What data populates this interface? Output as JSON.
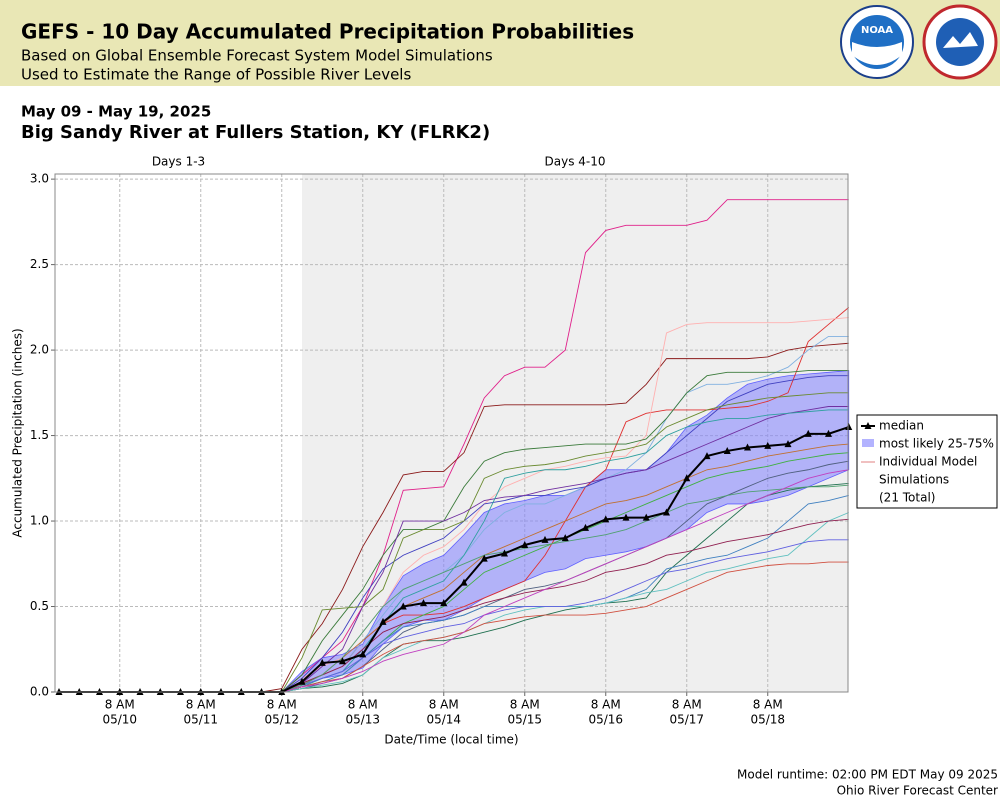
{
  "header": {
    "title": "GEFS - 10 Day Accumulated Precipitation Probabilities",
    "subtitles": [
      "Based on Global Ensemble Forecast System Model Simulations",
      "Used to Estimate the Range of Possible River Levels"
    ],
    "logo": "NOAA"
  },
  "chart_data": {
    "type": "line",
    "title": "May 09 - May 19, 2025",
    "subtitle": "Big Sandy River at Fullers Station, KY (FLRK2)",
    "x_label": "Date/Time (local time)",
    "y_label": "Accumulated Precipitation (inches)",
    "periods": [
      {
        "label": "Days 1-3",
        "start": 0,
        "end": 12
      },
      {
        "label": "Days 4-10",
        "start": 12,
        "end": 39
      }
    ],
    "categories": [
      null,
      null,
      null,
      [
        "8 AM",
        "05/10"
      ],
      null,
      null,
      null,
      [
        "8 AM",
        "05/11"
      ],
      null,
      null,
      null,
      [
        "8 AM",
        "05/12"
      ],
      null,
      null,
      null,
      [
        "8 AM",
        "05/13"
      ],
      null,
      null,
      null,
      [
        "8 AM",
        "05/14"
      ],
      null,
      null,
      null,
      [
        "8 AM",
        "05/15"
      ],
      null,
      null,
      null,
      [
        "8 AM",
        "05/16"
      ],
      null,
      null,
      null,
      [
        "8 AM",
        "05/17"
      ],
      null,
      null,
      null,
      [
        "8 AM",
        "05/18"
      ],
      null,
      null,
      null,
      null
    ],
    "ylim": [
      0,
      3.03
    ],
    "yticks": [
      {
        "value": 0,
        "label": "0.0"
      },
      0.5,
      {
        "value": 1,
        "label": "1.0"
      },
      1.5,
      {
        "value": 2,
        "label": "2.0"
      },
      2.5,
      {
        "value": 3,
        "label": "3.0"
      }
    ],
    "grid": true,
    "median": {
      "name": "median",
      "color": "#000000",
      "values": [
        0,
        0,
        0,
        0,
        0,
        0,
        0,
        0,
        0,
        0,
        0,
        0,
        0.06,
        0.17,
        0.18,
        0.22,
        0.41,
        0.5,
        0.52,
        0.52,
        0.64,
        0.78,
        0.81,
        0.86,
        0.89,
        0.9,
        0.96,
        1.01,
        1.02,
        1.02,
        1.05,
        1.25,
        1.38,
        1.41,
        1.43,
        1.44,
        1.45,
        1.51,
        1.51,
        1.55
      ]
    },
    "band": {
      "name": "most likely 25-75%",
      "color": "#8080ff",
      "low": [
        0,
        0,
        0,
        0,
        0,
        0,
        0,
        0,
        0,
        0,
        0,
        0,
        0.03,
        0.08,
        0.1,
        0.14,
        0.28,
        0.38,
        0.42,
        0.42,
        0.48,
        0.55,
        0.6,
        0.65,
        0.7,
        0.72,
        0.78,
        0.8,
        0.82,
        0.85,
        0.9,
        0.95,
        1.05,
        1.1,
        1.1,
        1.12,
        1.15,
        1.2,
        1.25,
        1.3
      ],
      "high": [
        0,
        0,
        0,
        0,
        0,
        0,
        0,
        0,
        0,
        0,
        0,
        0,
        0.12,
        0.2,
        0.22,
        0.28,
        0.5,
        0.68,
        0.75,
        0.8,
        0.92,
        1.05,
        1.1,
        1.12,
        1.15,
        1.15,
        1.2,
        1.3,
        1.3,
        1.3,
        1.4,
        1.55,
        1.62,
        1.72,
        1.8,
        1.83,
        1.85,
        1.86,
        1.87,
        1.88
      ]
    },
    "simulations": {
      "legend": [
        "Individual Model",
        "Simulations",
        "(21 Total)"
      ],
      "legend_color": "#e08080",
      "series": [
        {
          "color": "#e0208a",
          "values": [
            0,
            0,
            0,
            0,
            0,
            0,
            0,
            0,
            0,
            0,
            0,
            0,
            0.1,
            0.2,
            0.3,
            0.5,
            0.8,
            1.18,
            1.19,
            1.2,
            1.45,
            1.72,
            1.85,
            1.9,
            1.9,
            2.0,
            2.57,
            2.7,
            2.73,
            2.73,
            2.73,
            2.73,
            2.76,
            2.88,
            2.88,
            2.88,
            2.88,
            2.88,
            2.88,
            2.88
          ]
        },
        {
          "color": "#8b1a1a",
          "values": [
            0,
            0,
            0,
            0,
            0,
            0,
            0,
            0,
            0,
            0,
            0,
            0.02,
            0.25,
            0.4,
            0.6,
            0.85,
            1.05,
            1.27,
            1.29,
            1.29,
            1.4,
            1.67,
            1.68,
            1.68,
            1.68,
            1.68,
            1.68,
            1.68,
            1.69,
            1.8,
            1.95,
            1.95,
            1.95,
            1.95,
            1.95,
            1.96,
            2.0,
            2.02,
            2.03,
            2.04
          ]
        },
        {
          "color": "#e03030",
          "values": [
            0,
            0,
            0,
            0,
            0,
            0,
            0,
            0,
            0,
            0,
            0,
            0,
            0.05,
            0.1,
            0.15,
            0.3,
            0.4,
            0.45,
            0.45,
            0.46,
            0.5,
            0.55,
            0.6,
            0.65,
            0.8,
            1.0,
            1.2,
            1.3,
            1.58,
            1.63,
            1.65,
            1.65,
            1.65,
            1.66,
            1.67,
            1.7,
            1.75,
            2.05,
            2.15,
            2.25
          ]
        },
        {
          "color": "#ffb0b0",
          "values": [
            0,
            0,
            0,
            0,
            0,
            0,
            0,
            0,
            0,
            0,
            0,
            0,
            0.08,
            0.15,
            0.2,
            0.35,
            0.5,
            0.7,
            0.8,
            0.85,
            0.95,
            1.1,
            1.2,
            1.25,
            1.3,
            1.32,
            1.35,
            1.37,
            1.38,
            1.5,
            2.1,
            2.15,
            2.16,
            2.16,
            2.16,
            2.16,
            2.16,
            2.17,
            2.18,
            2.19
          ]
        },
        {
          "color": "#80b0e0",
          "values": [
            0,
            0,
            0,
            0,
            0,
            0,
            0,
            0,
            0,
            0,
            0,
            0,
            0.05,
            0.1,
            0.15,
            0.3,
            0.45,
            0.6,
            0.65,
            0.7,
            0.8,
            0.95,
            1.05,
            1.1,
            1.1,
            1.15,
            1.2,
            1.25,
            1.3,
            1.4,
            1.6,
            1.75,
            1.8,
            1.8,
            1.82,
            1.85,
            1.9,
            2.0,
            2.08,
            2.08
          ]
        },
        {
          "color": "#3a7a3a",
          "values": [
            0,
            0,
            0,
            0,
            0,
            0,
            0,
            0,
            0,
            0,
            0,
            0,
            0.1,
            0.3,
            0.45,
            0.6,
            0.8,
            0.95,
            0.95,
            1.0,
            1.2,
            1.35,
            1.4,
            1.42,
            1.43,
            1.44,
            1.45,
            1.45,
            1.45,
            1.48,
            1.6,
            1.75,
            1.85,
            1.87,
            1.87,
            1.87,
            1.87,
            1.88,
            1.88,
            1.88
          ]
        },
        {
          "color": "#4040c0",
          "values": [
            0,
            0,
            0,
            0,
            0,
            0,
            0,
            0,
            0,
            0,
            0,
            0,
            0.08,
            0.2,
            0.35,
            0.55,
            0.72,
            0.8,
            0.85,
            0.9,
            1.0,
            1.1,
            1.12,
            1.15,
            1.15,
            1.18,
            1.2,
            1.25,
            1.28,
            1.3,
            1.4,
            1.5,
            1.6,
            1.7,
            1.75,
            1.8,
            1.82,
            1.84,
            1.85,
            1.85
          ]
        },
        {
          "color": "#6a8a30",
          "values": [
            0,
            0,
            0,
            0,
            0,
            0,
            0,
            0,
            0,
            0,
            0,
            0,
            0.2,
            0.48,
            0.49,
            0.5,
            0.6,
            0.9,
            0.95,
            0.95,
            1.0,
            1.25,
            1.3,
            1.32,
            1.33,
            1.35,
            1.38,
            1.4,
            1.42,
            1.45,
            1.55,
            1.6,
            1.65,
            1.68,
            1.7,
            1.72,
            1.73,
            1.74,
            1.75,
            1.75
          ]
        },
        {
          "color": "#7030a0",
          "values": [
            0,
            0,
            0,
            0,
            0,
            0,
            0,
            0,
            0,
            0,
            0,
            0,
            0.05,
            0.15,
            0.25,
            0.5,
            0.7,
            1.0,
            1.0,
            1.0,
            1.05,
            1.12,
            1.14,
            1.15,
            1.18,
            1.2,
            1.22,
            1.25,
            1.28,
            1.3,
            1.35,
            1.4,
            1.45,
            1.5,
            1.55,
            1.6,
            1.63,
            1.65,
            1.67,
            1.67
          ]
        },
        {
          "color": "#30a0a0",
          "values": [
            0,
            0,
            0,
            0,
            0,
            0,
            0,
            0,
            0,
            0,
            0,
            0,
            0.03,
            0.08,
            0.12,
            0.25,
            0.4,
            0.55,
            0.6,
            0.65,
            0.8,
            1.0,
            1.25,
            1.28,
            1.3,
            1.3,
            1.32,
            1.35,
            1.37,
            1.4,
            1.5,
            1.55,
            1.58,
            1.6,
            1.6,
            1.62,
            1.63,
            1.64,
            1.65,
            1.65
          ]
        },
        {
          "color": "#c07030",
          "values": [
            0,
            0,
            0,
            0,
            0,
            0,
            0,
            0,
            0,
            0,
            0,
            0,
            0.05,
            0.1,
            0.2,
            0.3,
            0.4,
            0.5,
            0.55,
            0.6,
            0.7,
            0.8,
            0.85,
            0.9,
            0.95,
            1.0,
            1.05,
            1.1,
            1.12,
            1.15,
            1.2,
            1.25,
            1.3,
            1.32,
            1.35,
            1.38,
            1.4,
            1.42,
            1.44,
            1.45
          ]
        },
        {
          "color": "#40b040",
          "values": [
            0,
            0,
            0,
            0,
            0,
            0,
            0,
            0,
            0,
            0,
            0,
            0,
            0.03,
            0.06,
            0.1,
            0.2,
            0.3,
            0.4,
            0.45,
            0.5,
            0.6,
            0.7,
            0.75,
            0.8,
            0.85,
            0.9,
            0.95,
            1.0,
            1.05,
            1.1,
            1.15,
            1.2,
            1.25,
            1.28,
            1.3,
            1.32,
            1.35,
            1.37,
            1.39,
            1.4
          ]
        },
        {
          "color": "#506080",
          "values": [
            0,
            0,
            0,
            0,
            0,
            0,
            0,
            0,
            0,
            0,
            0,
            0,
            0.02,
            0.05,
            0.08,
            0.15,
            0.25,
            0.35,
            0.4,
            0.42,
            0.45,
            0.5,
            0.55,
            0.6,
            0.62,
            0.65,
            0.7,
            0.75,
            0.8,
            0.85,
            0.9,
            1.0,
            1.1,
            1.15,
            1.2,
            1.25,
            1.28,
            1.3,
            1.33,
            1.35
          ]
        },
        {
          "color": "#207050",
          "values": [
            0,
            0,
            0,
            0,
            0,
            0,
            0,
            0,
            0,
            0,
            0,
            0,
            0.02,
            0.03,
            0.05,
            0.1,
            0.2,
            0.28,
            0.3,
            0.3,
            0.32,
            0.35,
            0.38,
            0.42,
            0.45,
            0.48,
            0.5,
            0.52,
            0.53,
            0.55,
            0.7,
            0.8,
            0.9,
            1.0,
            1.1,
            1.15,
            1.18,
            1.2,
            1.21,
            1.22
          ]
        },
        {
          "color": "#4080c0",
          "values": [
            0,
            0,
            0,
            0,
            0,
            0,
            0,
            0,
            0,
            0,
            0,
            0,
            0.03,
            0.06,
            0.1,
            0.2,
            0.3,
            0.38,
            0.4,
            0.42,
            0.45,
            0.5,
            0.5,
            0.5,
            0.5,
            0.5,
            0.5,
            0.52,
            0.55,
            0.6,
            0.72,
            0.75,
            0.78,
            0.8,
            0.85,
            0.9,
            1.0,
            1.1,
            1.12,
            1.15
          ]
        },
        {
          "color": "#60c0c0",
          "values": [
            0,
            0,
            0,
            0,
            0,
            0,
            0,
            0,
            0,
            0,
            0,
            0,
            0.02,
            0.04,
            0.06,
            0.1,
            0.2,
            0.25,
            0.3,
            0.32,
            0.35,
            0.4,
            0.45,
            0.48,
            0.5,
            0.5,
            0.5,
            0.52,
            0.55,
            0.58,
            0.6,
            0.65,
            0.7,
            0.72,
            0.75,
            0.78,
            0.8,
            0.9,
            1.0,
            1.05
          ]
        },
        {
          "color": "#902050",
          "values": [
            0,
            0,
            0,
            0,
            0,
            0,
            0,
            0,
            0,
            0,
            0,
            0,
            0.05,
            0.1,
            0.15,
            0.25,
            0.35,
            0.4,
            0.42,
            0.44,
            0.48,
            0.52,
            0.55,
            0.58,
            0.6,
            0.62,
            0.65,
            0.7,
            0.72,
            0.75,
            0.8,
            0.82,
            0.85,
            0.88,
            0.9,
            0.92,
            0.95,
            0.98,
            1.0,
            1.01
          ]
        },
        {
          "color": "#6060e0",
          "values": [
            0,
            0,
            0,
            0,
            0,
            0,
            0,
            0,
            0,
            0,
            0,
            0,
            0.04,
            0.08,
            0.12,
            0.2,
            0.28,
            0.32,
            0.35,
            0.38,
            0.4,
            0.45,
            0.48,
            0.5,
            0.5,
            0.5,
            0.52,
            0.55,
            0.6,
            0.65,
            0.7,
            0.72,
            0.75,
            0.78,
            0.8,
            0.82,
            0.85,
            0.88,
            0.89,
            0.89
          ]
        },
        {
          "color": "#d05040",
          "values": [
            0,
            0,
            0,
            0,
            0,
            0,
            0,
            0,
            0,
            0,
            0,
            0,
            0.03,
            0.06,
            0.08,
            0.15,
            0.22,
            0.28,
            0.3,
            0.32,
            0.35,
            0.4,
            0.42,
            0.44,
            0.45,
            0.45,
            0.45,
            0.46,
            0.48,
            0.5,
            0.55,
            0.6,
            0.65,
            0.7,
            0.72,
            0.74,
            0.75,
            0.75,
            0.76,
            0.76
          ]
        },
        {
          "color": "#50a070",
          "values": [
            0,
            0,
            0,
            0,
            0,
            0,
            0,
            0,
            0,
            0,
            0,
            0,
            0.04,
            0.1,
            0.2,
            0.35,
            0.5,
            0.6,
            0.65,
            0.7,
            0.75,
            0.8,
            0.82,
            0.84,
            0.86,
            0.88,
            0.9,
            0.92,
            0.95,
            1.0,
            1.05,
            1.1,
            1.12,
            1.15,
            1.17,
            1.18,
            1.19,
            1.2,
            1.2,
            1.21
          ]
        },
        {
          "color": "#c040c0",
          "values": [
            0,
            0,
            0,
            0,
            0,
            0,
            0,
            0,
            0,
            0,
            0,
            0,
            0.03,
            0.05,
            0.08,
            0.12,
            0.18,
            0.22,
            0.25,
            0.28,
            0.35,
            0.45,
            0.5,
            0.55,
            0.6,
            0.65,
            0.7,
            0.75,
            0.8,
            0.85,
            0.9,
            0.95,
            1.0,
            1.05,
            1.1,
            1.15,
            1.2,
            1.25,
            1.28,
            1.3
          ]
        }
      ]
    }
  },
  "footer": [
    "Model runtime: 02:00 PM EDT May 09 2025",
    "Ohio River Forecast Center"
  ]
}
